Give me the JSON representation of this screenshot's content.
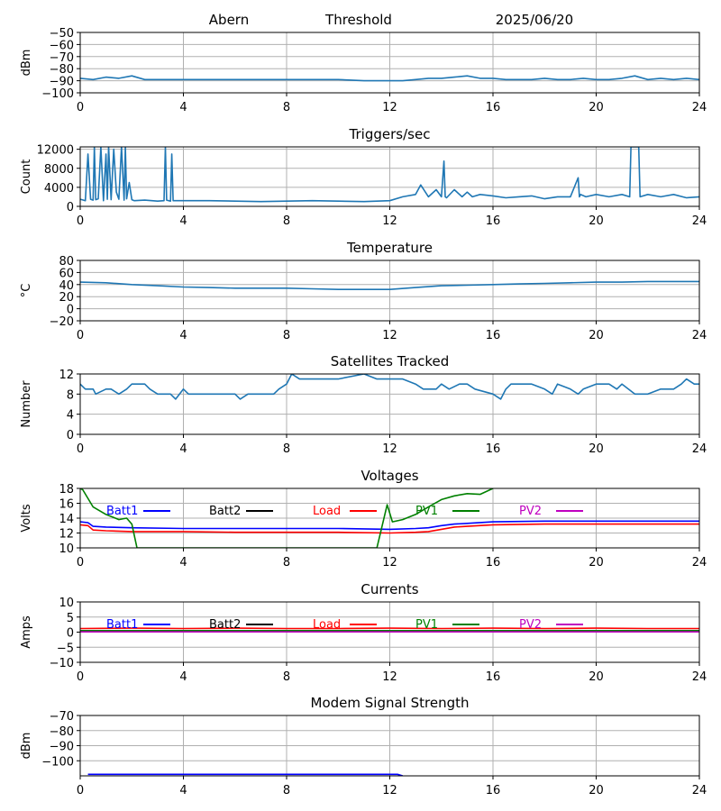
{
  "header": {
    "site": "Abern",
    "label": "Threshold",
    "date": "2025/06/20"
  },
  "colors": {
    "series": "#1f77b4",
    "grid": "#b0b0b0",
    "batt1": "#0000ff",
    "batt2": "#000000",
    "load": "#ff0000",
    "pv1": "#008000",
    "pv2": "#bf00bf"
  },
  "chart_data": [
    {
      "type": "line",
      "title": "",
      "ylabel": "dBm",
      "xlim": [
        0,
        24
      ],
      "xticks": [
        0,
        4,
        8,
        12,
        16,
        20,
        24
      ],
      "ylim": [
        -100,
        -50
      ],
      "yticks": [
        -100,
        -90,
        -80,
        -70,
        -60,
        -50
      ],
      "grid": true,
      "series": [
        {
          "x": [
            0,
            0.5,
            1,
            1.5,
            2,
            2.5,
            3,
            4,
            5,
            6,
            7,
            8,
            9,
            10,
            11,
            12,
            12.5,
            13,
            13.5,
            14,
            14.5,
            15,
            15.5,
            16,
            16.5,
            17,
            17.5,
            18,
            18.5,
            19,
            19.5,
            20,
            20.5,
            21,
            21.5,
            22,
            22.5,
            23,
            23.5,
            24
          ],
          "y": [
            -88,
            -89,
            -87,
            -88,
            -86,
            -89,
            -89,
            -89,
            -89,
            -89,
            -89,
            -89,
            -89,
            -89,
            -90,
            -90,
            -90,
            -89,
            -88,
            -88,
            -87,
            -86,
            -88,
            -88,
            -89,
            -89,
            -89,
            -88,
            -89,
            -89,
            -88,
            -89,
            -89,
            -88,
            -86,
            -89,
            -88,
            -89,
            -88,
            -89
          ]
        }
      ]
    },
    {
      "type": "line",
      "title": "Triggers/sec",
      "ylabel": "Count",
      "xlim": [
        0,
        24
      ],
      "xticks": [
        0,
        4,
        8,
        12,
        16,
        20,
        24
      ],
      "ylim": [
        0,
        12500
      ],
      "yticks": [
        0,
        4000,
        8000,
        12000
      ],
      "grid": true,
      "series": [
        {
          "x": [
            0,
            0.2,
            0.3,
            0.4,
            0.5,
            0.55,
            0.6,
            0.7,
            0.8,
            0.9,
            1.0,
            1.05,
            1.1,
            1.2,
            1.3,
            1.4,
            1.5,
            1.6,
            1.7,
            1.75,
            1.8,
            1.9,
            2.0,
            2.1,
            2.5,
            3.0,
            3.25,
            3.3,
            3.35,
            3.5,
            3.55,
            3.6,
            4,
            5,
            6,
            7,
            8,
            9,
            10,
            11,
            12,
            12.5,
            13,
            13.2,
            13.5,
            13.8,
            14,
            14.1,
            14.15,
            14.2,
            14.5,
            14.8,
            15,
            15.2,
            15.5,
            16,
            16.5,
            17,
            17.5,
            18,
            18.5,
            19,
            19.3,
            19.35,
            19.4,
            19.6,
            20,
            20.5,
            21,
            21.3,
            21.35,
            21.5,
            21.65,
            21.7,
            22,
            22.5,
            23,
            23.5,
            24
          ],
          "y": [
            1500,
            1200,
            11000,
            1500,
            1300,
            12500,
            1400,
            1600,
            12500,
            1200,
            11000,
            1500,
            12500,
            1400,
            12000,
            3000,
            1500,
            12500,
            1300,
            12500,
            1600,
            5000,
            1400,
            1200,
            1300,
            1100,
            1200,
            12500,
            1300,
            1100,
            11000,
            1200,
            1200,
            1200,
            1100,
            1000,
            1100,
            1200,
            1100,
            1000,
            1200,
            2000,
            2500,
            4500,
            2000,
            3500,
            2000,
            9500,
            2000,
            1800,
            3500,
            2000,
            3000,
            2000,
            2500,
            2200,
            1800,
            2000,
            2200,
            1600,
            2000,
            2000,
            6000,
            2000,
            2500,
            2000,
            2500,
            2000,
            2500,
            2000,
            12500,
            12500,
            12500,
            2000,
            2500,
            2000,
            2500,
            1800,
            2000
          ]
        }
      ]
    },
    {
      "type": "line",
      "title": "Temperature",
      "ylabel": "°C",
      "xlim": [
        0,
        24
      ],
      "xticks": [
        0,
        4,
        8,
        12,
        16,
        20,
        24
      ],
      "ylim": [
        -20,
        80
      ],
      "yticks": [
        -20,
        0,
        20,
        40,
        60,
        80
      ],
      "grid": true,
      "series": [
        {
          "x": [
            0,
            1,
            2,
            3,
            4,
            5,
            6,
            7,
            8,
            9,
            10,
            11,
            12,
            13,
            14,
            15,
            16,
            17,
            18,
            19,
            20,
            21,
            22,
            23,
            24
          ],
          "y": [
            44,
            43,
            40,
            38,
            36,
            35,
            34,
            34,
            34,
            33,
            32,
            32,
            32,
            35,
            38,
            39,
            40,
            41,
            42,
            43,
            44,
            44,
            45,
            45,
            45
          ]
        }
      ]
    },
    {
      "type": "line",
      "title": "Satellites Tracked",
      "ylabel": "Number",
      "xlim": [
        0,
        24
      ],
      "xticks": [
        0,
        4,
        8,
        12,
        16,
        20,
        24
      ],
      "ylim": [
        0,
        12
      ],
      "yticks": [
        0,
        4,
        8,
        12
      ],
      "grid": true,
      "series": [
        {
          "x": [
            0,
            0.2,
            0.5,
            0.6,
            1,
            1.2,
            1.5,
            1.8,
            2,
            2.5,
            2.7,
            3,
            3.5,
            3.7,
            4,
            4.2,
            4.5,
            5,
            5.5,
            6,
            6.2,
            6.5,
            7,
            7.5,
            7.7,
            8,
            8.2,
            8.5,
            9,
            9.5,
            10,
            11,
            11.5,
            12,
            12.5,
            13,
            13.3,
            13.8,
            14,
            14.3,
            14.7,
            15,
            15.3,
            16,
            16.3,
            16.5,
            16.7,
            17,
            17.5,
            18,
            18.3,
            18.5,
            19,
            19.3,
            19.5,
            20,
            20.5,
            20.8,
            21,
            21.5,
            22,
            22.5,
            23,
            23.3,
            23.5,
            23.8,
            24
          ],
          "y": [
            10,
            9,
            9,
            8,
            9,
            9,
            8,
            9,
            10,
            10,
            9,
            8,
            8,
            7,
            9,
            8,
            8,
            8,
            8,
            8,
            7,
            8,
            8,
            8,
            9,
            10,
            12,
            11,
            11,
            11,
            11,
            12,
            11,
            11,
            11,
            10,
            9,
            9,
            10,
            9,
            10,
            10,
            9,
            8,
            7,
            9,
            10,
            10,
            10,
            9,
            8,
            10,
            9,
            8,
            9,
            10,
            10,
            9,
            10,
            8,
            8,
            9,
            9,
            10,
            11,
            10,
            10
          ]
        }
      ]
    },
    {
      "type": "line",
      "title": "Voltages",
      "ylabel": "Volts",
      "xlim": [
        0,
        24
      ],
      "xticks": [
        0,
        4,
        8,
        12,
        16,
        20,
        24
      ],
      "ylim": [
        10,
        18
      ],
      "yticks": [
        10,
        12,
        14,
        16,
        18
      ],
      "grid": true,
      "legend": "top-row",
      "series": [
        {
          "name": "Batt1",
          "color": "#0000ff",
          "x": [
            0,
            0.3,
            0.5,
            1,
            2,
            4,
            6,
            8,
            10,
            12,
            13,
            13.5,
            14,
            14.5,
            15,
            16,
            18,
            20,
            22,
            24
          ],
          "y": [
            13.5,
            13.4,
            12.9,
            12.8,
            12.7,
            12.6,
            12.6,
            12.6,
            12.6,
            12.5,
            12.6,
            12.7,
            13.0,
            13.2,
            13.3,
            13.5,
            13.6,
            13.6,
            13.6,
            13.6
          ]
        },
        {
          "name": "Batt2",
          "color": "#000000",
          "x": [],
          "y": []
        },
        {
          "name": "Load",
          "color": "#ff0000",
          "x": [
            0,
            0.3,
            0.5,
            1,
            2,
            4,
            6,
            8,
            10,
            12,
            13,
            13.5,
            14,
            14.5,
            15,
            16,
            18,
            20,
            22,
            24
          ],
          "y": [
            13.1,
            13.0,
            12.4,
            12.3,
            12.2,
            12.2,
            12.1,
            12.1,
            12.1,
            12.0,
            12.1,
            12.2,
            12.5,
            12.8,
            12.9,
            13.1,
            13.2,
            13.2,
            13.2,
            13.2
          ]
        },
        {
          "name": "PV1",
          "color": "#008000",
          "x": [
            0,
            0.1,
            0.5,
            1,
            1.5,
            1.8,
            2.0,
            2.2,
            11.5,
            11.9,
            12.1,
            12.5,
            13,
            13.5,
            14,
            14.5,
            15,
            15.5,
            16
          ],
          "y": [
            18,
            17.8,
            15.5,
            14.5,
            13.8,
            14.0,
            13.2,
            10.0,
            10.0,
            15.8,
            13.5,
            13.8,
            14.5,
            15.5,
            16.5,
            17.0,
            17.3,
            17.2,
            18.0
          ]
        },
        {
          "name": "PV2",
          "color": "#bf00bf",
          "x": [],
          "y": []
        }
      ]
    },
    {
      "type": "line",
      "title": "Currents",
      "ylabel": "Amps",
      "xlim": [
        0,
        24
      ],
      "xticks": [
        0,
        4,
        8,
        12,
        16,
        20,
        24
      ],
      "ylim": [
        -10,
        10
      ],
      "yticks": [
        -10,
        -5,
        0,
        5,
        10
      ],
      "grid": true,
      "legend": "top-row",
      "series": [
        {
          "name": "Batt1",
          "color": "#0000ff",
          "x": [
            0,
            24
          ],
          "y": [
            0.2,
            0.2
          ]
        },
        {
          "name": "Batt2",
          "color": "#000000",
          "x": [],
          "y": []
        },
        {
          "name": "Load",
          "color": "#ff0000",
          "x": [
            0,
            2,
            4,
            6,
            8,
            10,
            12,
            14,
            16,
            18,
            20,
            22,
            24
          ],
          "y": [
            1.2,
            1.3,
            1.2,
            1.3,
            1.2,
            1.2,
            1.3,
            1.2,
            1.3,
            1.2,
            1.3,
            1.2,
            1.2
          ]
        },
        {
          "name": "PV1",
          "color": "#008000",
          "x": [
            0,
            24
          ],
          "y": [
            0.5,
            0.5
          ]
        },
        {
          "name": "PV2",
          "color": "#bf00bf",
          "x": [
            0,
            24
          ],
          "y": [
            0.1,
            0.1
          ]
        }
      ]
    },
    {
      "type": "line",
      "title": "Modem Signal Strength",
      "ylabel": "dBm",
      "xlim": [
        0,
        24
      ],
      "xticks": [
        0,
        4,
        8,
        12,
        16,
        20,
        24
      ],
      "ylim": [
        -110,
        -70
      ],
      "yticks": [
        -100,
        -90,
        -80,
        -70
      ],
      "grid": true,
      "series": [
        {
          "color": "#0000ff",
          "x": [
            0.3,
            12.3,
            12.5
          ],
          "y": [
            -109,
            -109,
            -110
          ]
        }
      ]
    }
  ]
}
